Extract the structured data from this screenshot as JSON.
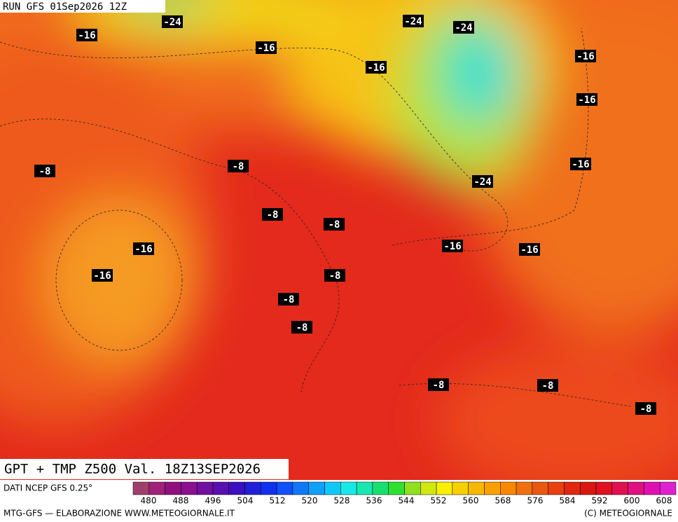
{
  "header": {
    "run": "RUN GFS 01Sep2026 12Z"
  },
  "map": {
    "contour_labels": [
      "-24",
      "-24",
      "-24",
      "-24",
      "-16",
      "-16",
      "-16",
      "-16",
      "-16",
      "-16",
      "-16",
      "-16",
      "-16",
      "-16",
      "-8",
      "-8",
      "-8",
      "-8",
      "-8",
      "-8",
      "-8",
      "-8",
      "-8",
      "-8"
    ]
  },
  "title": "GPT + TMP Z500 Val. 18Z13SEP2026",
  "colorbar": {
    "source": "DATI NCEP GFS 0.25°",
    "ticks": [
      480,
      488,
      496,
      504,
      512,
      520,
      528,
      536,
      544,
      552,
      560,
      568,
      576,
      584,
      592,
      600,
      608
    ]
  },
  "footer": {
    "credit": "MTG-GFS — ELABORAZIONE WWW.METEOGIORNALE.IT",
    "copyright": "(C) METEOGIORNALE"
  }
}
